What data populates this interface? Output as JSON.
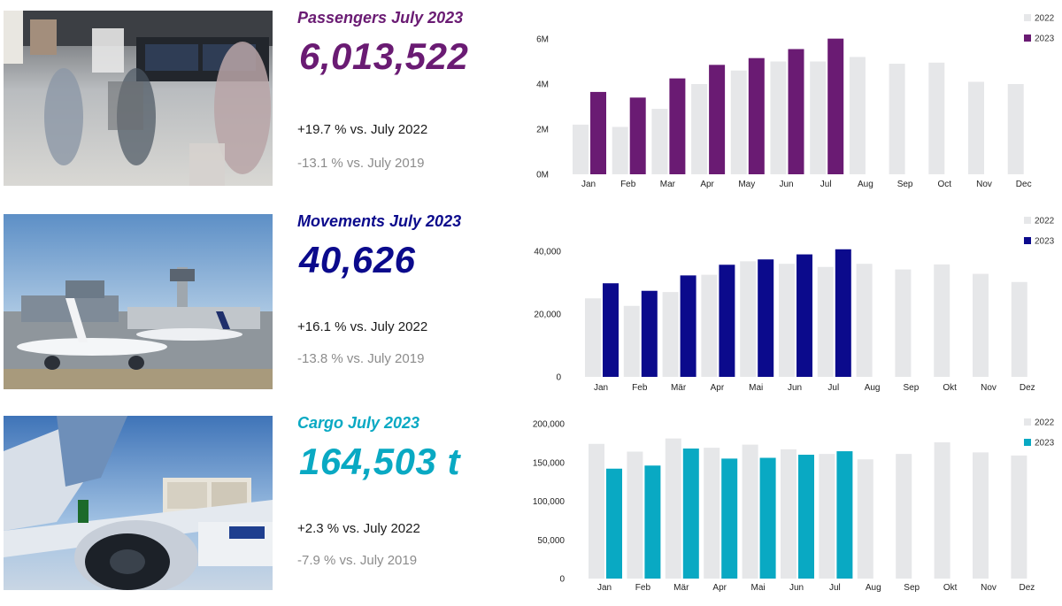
{
  "colors": {
    "bar_2022": "#e6e7e9",
    "passengers": "#6a1b73",
    "movements": "#0b0a8c",
    "cargo": "#09a9c3"
  },
  "passengers": {
    "title": "Passengers July 2023",
    "value": "6,013,522",
    "vs_2022": "+19.7 % vs. July 2022",
    "vs_2019": "-13.1 % vs. July 2019",
    "photo_icon": "airport-terminal-photo"
  },
  "movements": {
    "title": "Movements July 2023",
    "value": "40,626",
    "vs_2022": "+16.1 % vs. July 2022",
    "vs_2019": "-13.8 % vs. July 2019",
    "photo_icon": "airport-apron-photo"
  },
  "cargo": {
    "title": "Cargo July 2023",
    "value": "164,503 t",
    "vs_2022": "+2.3 % vs. July 2022",
    "vs_2019": "-7.9 % vs. July 2019",
    "photo_icon": "cargo-loading-photo"
  },
  "chart_data": [
    {
      "type": "bar",
      "categories": [
        "Jan",
        "Feb",
        "Mar",
        "Apr",
        "May",
        "Jun",
        "Jul",
        "Aug",
        "Sep",
        "Oct",
        "Nov",
        "Dec"
      ],
      "series": [
        {
          "name": "2022",
          "values": [
            2200000,
            2100000,
            2900000,
            4000000,
            4600000,
            5000000,
            5000000,
            5200000,
            4900000,
            4950000,
            4100000,
            4000000
          ]
        },
        {
          "name": "2023",
          "values": [
            3650000,
            3400000,
            4250000,
            4850000,
            5150000,
            5550000,
            6013522,
            null,
            null,
            null,
            null,
            null
          ]
        }
      ],
      "yticks": [
        "0M",
        "2M",
        "4M",
        "6M"
      ],
      "ytick_values": [
        0,
        2000000,
        4000000,
        6000000
      ],
      "ylim": [
        0,
        6000000
      ],
      "legend": "top-right",
      "grid": false,
      "title": "",
      "xlabel": "",
      "ylabel": ""
    },
    {
      "type": "bar",
      "categories": [
        "Jan",
        "Feb",
        "Mär",
        "Apr",
        "Mai",
        "Jun",
        "Jul",
        "Aug",
        "Sep",
        "Okt",
        "Nov",
        "Dez"
      ],
      "series": [
        {
          "name": "2022",
          "values": [
            25000,
            22600,
            27000,
            32500,
            36800,
            36000,
            35000,
            36000,
            34200,
            35800,
            32800,
            30200
          ]
        },
        {
          "name": "2023",
          "values": [
            29800,
            27400,
            32300,
            35700,
            37400,
            39000,
            40626,
            null,
            null,
            null,
            null,
            null
          ]
        }
      ],
      "yticks": [
        "0",
        "20,000",
        "40,000"
      ],
      "ytick_values": [
        0,
        20000,
        40000
      ],
      "ylim": [
        0,
        40000
      ],
      "legend": "top-right",
      "grid": false,
      "title": "",
      "xlabel": "",
      "ylabel": ""
    },
    {
      "type": "bar",
      "categories": [
        "Jan",
        "Feb",
        "Mär",
        "Apr",
        "Mai",
        "Jun",
        "Jul",
        "Aug",
        "Sep",
        "Okt",
        "Nov",
        "Dez"
      ],
      "series": [
        {
          "name": "2022",
          "values": [
            174000,
            164000,
            181000,
            169000,
            173000,
            167000,
            161000,
            154000,
            161000,
            176000,
            163000,
            159000
          ]
        },
        {
          "name": "2023",
          "values": [
            142000,
            146000,
            168000,
            155000,
            156000,
            160000,
            164503,
            null,
            null,
            null,
            null,
            null
          ]
        }
      ],
      "yticks": [
        "0",
        "50,000",
        "100,000",
        "150,000",
        "200,000"
      ],
      "ytick_values": [
        0,
        50000,
        100000,
        150000,
        200000
      ],
      "ylim": [
        0,
        200000
      ],
      "legend": "top-right",
      "grid": false,
      "title": "",
      "xlabel": "",
      "ylabel": ""
    }
  ]
}
